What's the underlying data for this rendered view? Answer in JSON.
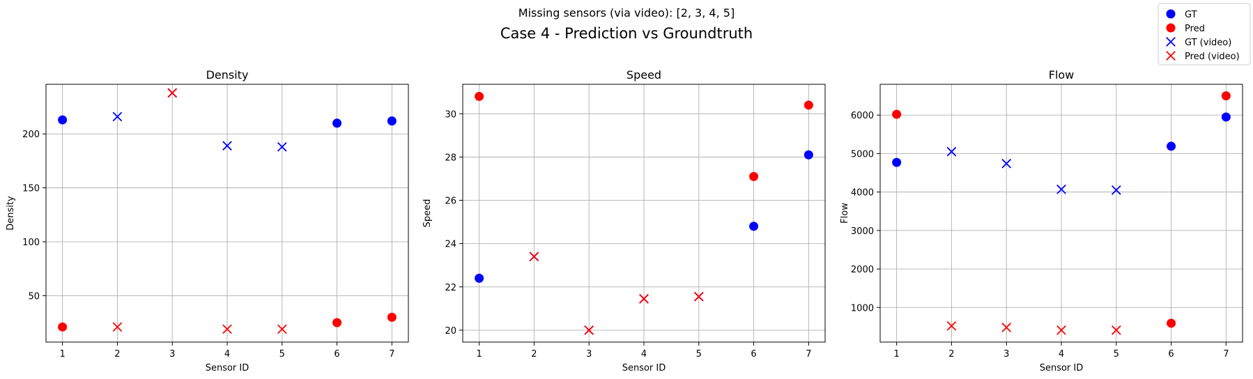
{
  "suptitle": "Case 4 - Prediction vs Groundtruth",
  "subtitle": "Missing sensors (via video): [2, 3, 4, 5]",
  "legend": {
    "placement": "top-right",
    "entries": [
      {
        "label": "GT",
        "marker": "circle",
        "color": "#0000ff"
      },
      {
        "label": "Pred",
        "marker": "circle",
        "color": "#ff0000"
      },
      {
        "label": "GT (video)",
        "marker": "x",
        "color": "#0000ff"
      },
      {
        "label": "Pred (video)",
        "marker": "x",
        "color": "#ff0000"
      }
    ]
  },
  "chart_data": [
    {
      "type": "scatter",
      "title": "Density",
      "xlabel": "Sensor ID",
      "ylabel": "Density",
      "xlim": [
        0.7,
        7.3
      ],
      "ylim": [
        7,
        246
      ],
      "xticks": [
        1,
        2,
        3,
        4,
        5,
        6,
        7
      ],
      "yticks": [
        50,
        100,
        150,
        200
      ],
      "grid": true,
      "series": [
        {
          "name": "GT",
          "marker": "circle",
          "color": "#0000ff",
          "x": [
            1,
            6,
            7
          ],
          "y": [
            213,
            210,
            212
          ]
        },
        {
          "name": "Pred",
          "marker": "circle",
          "color": "#ff0000",
          "x": [
            1,
            6,
            7
          ],
          "y": [
            21,
            25,
            30
          ]
        },
        {
          "name": "GT (video)",
          "marker": "x",
          "color": "#0000ff",
          "x": [
            2,
            3,
            4,
            5
          ],
          "y": [
            216,
            238,
            189,
            188
          ]
        },
        {
          "name": "Pred (video)",
          "marker": "x",
          "color": "#ff0000",
          "x": [
            2,
            3,
            4,
            5
          ],
          "y": [
            21,
            238,
            19,
            19
          ]
        }
      ]
    },
    {
      "type": "scatter",
      "title": "Speed",
      "xlabel": "Sensor ID",
      "ylabel": "Speed",
      "xlim": [
        0.7,
        7.3
      ],
      "ylim": [
        19.45,
        31.36
      ],
      "xticks": [
        1,
        2,
        3,
        4,
        5,
        6,
        7
      ],
      "yticks": [
        20,
        22,
        24,
        26,
        28,
        30
      ],
      "grid": true,
      "series": [
        {
          "name": "GT",
          "marker": "circle",
          "color": "#0000ff",
          "x": [
            1,
            6,
            7
          ],
          "y": [
            22.4,
            24.8,
            28.1
          ]
        },
        {
          "name": "Pred",
          "marker": "circle",
          "color": "#ff0000",
          "x": [
            1,
            6,
            7
          ],
          "y": [
            30.8,
            27.1,
            30.4
          ]
        },
        {
          "name": "GT (video)",
          "marker": "x",
          "color": "#0000ff",
          "x": [
            2,
            3,
            4,
            5
          ],
          "y": [
            23.4,
            20.0,
            21.45,
            21.55
          ]
        },
        {
          "name": "Pred (video)",
          "marker": "x",
          "color": "#ff0000",
          "x": [
            2,
            3,
            4,
            5
          ],
          "y": [
            23.4,
            20.0,
            21.45,
            21.55
          ]
        }
      ]
    },
    {
      "type": "scatter",
      "title": "Flow",
      "xlabel": "Sensor ID",
      "ylabel": "Flow",
      "xlim": [
        0.7,
        7.3
      ],
      "ylim": [
        100,
        6800
      ],
      "xticks": [
        1,
        2,
        3,
        4,
        5,
        6,
        7
      ],
      "yticks": [
        1000,
        2000,
        3000,
        4000,
        5000,
        6000
      ],
      "grid": true,
      "series": [
        {
          "name": "GT",
          "marker": "circle",
          "color": "#0000ff",
          "x": [
            1,
            6,
            7
          ],
          "y": [
            4770,
            5190,
            5950
          ]
        },
        {
          "name": "Pred",
          "marker": "circle",
          "color": "#ff0000",
          "x": [
            1,
            6,
            7
          ],
          "y": [
            6020,
            590,
            6500
          ]
        },
        {
          "name": "GT (video)",
          "marker": "x",
          "color": "#0000ff",
          "x": [
            2,
            3,
            4,
            5
          ],
          "y": [
            5050,
            4740,
            4070,
            4050
          ]
        },
        {
          "name": "Pred (video)",
          "marker": "x",
          "color": "#ff0000",
          "x": [
            2,
            3,
            4,
            5
          ],
          "y": [
            520,
            480,
            410,
            410
          ]
        }
      ]
    }
  ]
}
